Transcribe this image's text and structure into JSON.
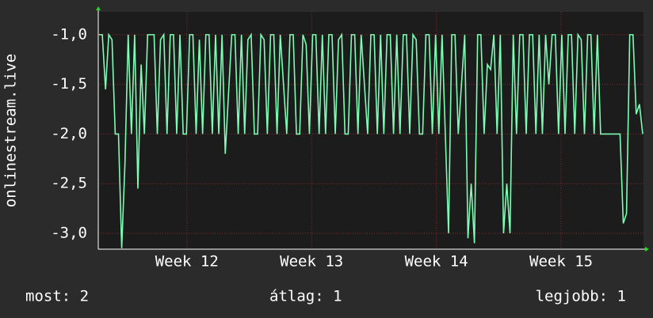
{
  "chart_data": {
    "type": "line",
    "y_label": "onlinestream.live",
    "color": "#7dfcb4",
    "grid": true,
    "values": [
      -1,
      -1,
      -1.55,
      -1,
      -1.05,
      -2,
      -2,
      -3.15,
      -2.3,
      -1,
      -2,
      -1,
      -2.55,
      -1.3,
      -2,
      -1,
      -1,
      -1,
      -2,
      -1.05,
      -1,
      -2,
      -1,
      -1,
      -2,
      -1,
      -2,
      -2,
      -1,
      -1,
      -2,
      -1.05,
      -2,
      -1,
      -1,
      -2,
      -1,
      -2,
      -1,
      -2.2,
      -1.6,
      -1,
      -1,
      -2,
      -1,
      -2,
      -1.05,
      -1,
      -2,
      -2,
      -1,
      -1.05,
      -2,
      -1,
      -1,
      -2,
      -1,
      -1.5,
      -2,
      -1,
      -1,
      -2,
      -2,
      -1,
      -1.1,
      -2,
      -1,
      -1,
      -2,
      -1,
      -2,
      -1,
      -1,
      -2,
      -1.05,
      -1,
      -2,
      -2,
      -1,
      -1,
      -2,
      -1,
      -1.5,
      -2,
      -1,
      -1,
      -2,
      -1,
      -2,
      -1,
      -1,
      -2,
      -1,
      -2,
      -1,
      -1,
      -2,
      -1,
      -1.05,
      -2,
      -2,
      -1,
      -1,
      -2,
      -1,
      -2,
      -1,
      -2,
      -3,
      -1,
      -1,
      -2,
      -1.5,
      -1,
      -3.05,
      -2.5,
      -3.1,
      -1,
      -1,
      -2,
      -1.3,
      -1.35,
      -1,
      -2,
      -1,
      -3,
      -2.5,
      -3,
      -1,
      -2,
      -1,
      -1,
      -2,
      -1,
      -1,
      -2,
      -1,
      -2,
      -1,
      -1.5,
      -1,
      -1,
      -2,
      -1,
      -2,
      -1,
      -1,
      -2,
      -1,
      -1.05,
      -2,
      -1,
      -1,
      -2,
      -1,
      -2,
      -2,
      -2,
      -2,
      -2,
      -2,
      -2,
      -2.9,
      -2.8,
      -1,
      -1,
      -1.8,
      -1.7,
      -2
    ],
    "xlim": [
      11.29,
      15.66
    ],
    "xticks": [
      {
        "value": 12,
        "label": "Week 12"
      },
      {
        "value": 13,
        "label": "Week 13"
      },
      {
        "value": 14,
        "label": "Week 14"
      },
      {
        "value": 15,
        "label": "Week 15"
      }
    ],
    "ylim": [
      -3.16,
      -0.77
    ],
    "yticks": [
      {
        "value": -1,
        "label": "-1,0"
      },
      {
        "value": -1.5,
        "label": "-1,5"
      },
      {
        "value": -2,
        "label": "-2,0"
      },
      {
        "value": -2.5,
        "label": "-2,5"
      },
      {
        "value": -3,
        "label": "-3,0"
      }
    ],
    "legend": {
      "current": "most: 2",
      "average": "átlag: 1",
      "best": "legjobb: 1"
    }
  }
}
